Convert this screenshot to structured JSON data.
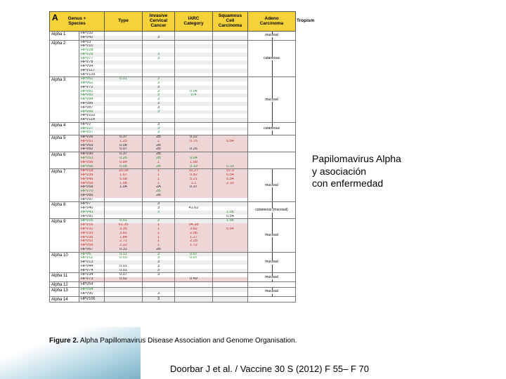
{
  "panelLabel": "A",
  "annotation": "Papilomavirus Alpha\ny asociación\ncon enfermedad",
  "citation": "Doorbar J et al. / Vaccine 30 S (2012) F 55– F 70",
  "figureCaption": [
    "Figure 2.",
    " Alpha Papillomavirus Disease Association and Genome Organisation."
  ],
  "headers": [
    "Genus + Species",
    "Type",
    "Invasive Cervical Cancer",
    "IARC Category",
    "Squamous Cell Carcinoma",
    "Adeno Carcinoma",
    "Tropism"
  ],
  "colors": {
    "black": "#222222",
    "green": "#1d8a2b",
    "red": "#c0281b",
    "band0": "#ffffff",
    "band1": "#eeeeee",
    "bandPink": "#efd6d6"
  },
  "groups": [
    {
      "genus": "Alpha 1",
      "tropism": "mucosal",
      "rows": [
        {
          "type": "HPV32",
          "c": "black"
        },
        {
          "type": "HPV42",
          "iarc": "3",
          "c": "black"
        }
      ]
    },
    {
      "genus": "Alpha 2",
      "tropism": "cutaneous",
      "rows": [
        {
          "type": "HPV3",
          "c": "black"
        },
        {
          "type": "HPV10",
          "c": "black"
        },
        {
          "type": "HPV28",
          "c": "green"
        },
        {
          "type": "HPV29",
          "iarc": "3",
          "c": "green"
        },
        {
          "type": "HPV77",
          "iarc": "3",
          "c": "green"
        },
        {
          "type": "HPV78",
          "c": "black"
        },
        {
          "type": "HPV94",
          "c": "black"
        },
        {
          "type": "HPV117",
          "c": "black"
        },
        {
          "type": "HPV125",
          "c": "black"
        }
      ]
    },
    {
      "genus": "Alpha 3",
      "tropism": "mucosal",
      "rows": [
        {
          "type": "HPV61",
          "icc": "0.01",
          "iarc": "3",
          "c": "green"
        },
        {
          "type": "HPV62",
          "iarc": "3",
          "c": "green"
        },
        {
          "type": "HPV72",
          "iarc": "3",
          "c": "black"
        },
        {
          "type": "HPV81",
          "iarc": "3",
          "scc": "0.04",
          "c": "green"
        },
        {
          "type": "HPV83",
          "iarc": "3",
          "scc": "0.4",
          "c": "green"
        },
        {
          "type": "HPV84",
          "iarc": "3",
          "c": "green"
        },
        {
          "type": "HPV86",
          "iarc": "3",
          "c": "black"
        },
        {
          "type": "HPV87",
          "iarc": "3",
          "c": "black"
        },
        {
          "type": "HPV89",
          "iarc": "3",
          "c": "green"
        },
        {
          "type": "HPV102",
          "c": "black"
        },
        {
          "type": "HPV114",
          "c": "black"
        }
      ]
    },
    {
      "genus": "Alpha 4",
      "tropism": "cutaneous",
      "rows": [
        {
          "type": "HPV2",
          "iarc": "3",
          "c": "black"
        },
        {
          "type": "HPV27",
          "iarc": "3",
          "c": "green"
        },
        {
          "type": "HPV57",
          "iarc": "3",
          "c": "green"
        }
      ]
    },
    {
      "genus": "Alpha 5",
      "rows": [
        {
          "type": "HPV26",
          "icc": "0.37",
          "iarc": "2B",
          "scc": "0.22",
          "c": "black",
          "pink": true
        },
        {
          "type": "HPV51",
          "icc": "1.25",
          "iarc": "1",
          "scc": "0.75",
          "adeno": "0.54",
          "c": "red",
          "pink": true
        },
        {
          "type": "HPV69",
          "icc": "0.08",
          "iarc": "2B",
          "c": "black",
          "pink": true
        },
        {
          "type": "HPV82",
          "icc": "0.07",
          "iarc": "2B",
          "scc": "0.26",
          "c": "black",
          "pink": true
        }
      ]
    },
    {
      "genus": "Alpha 6",
      "rows": [
        {
          "type": "HPV30",
          "icc": "0.37",
          "iarc": "2B",
          "c": "black",
          "pink": true
        },
        {
          "type": "HPV53",
          "icc": "0.26",
          "iarc": "2B",
          "scc": "0.04",
          "c": "green",
          "pink": true
        },
        {
          "type": "HPV56",
          "icc": "0.84",
          "iarc": "1",
          "scc": "1.09",
          "c": "red",
          "pink": true
        },
        {
          "type": "HPV66",
          "icc": "0.08",
          "iarc": "2B",
          "scc": "0.19",
          "adeno": "0.19",
          "c": "green",
          "pink": true
        }
      ]
    },
    {
      "genus": "Alpha 7",
      "tropism": "mucosal",
      "rows": [
        {
          "type": "HPV18",
          "icc": "10.28",
          "iarc": "1",
          "scc": "11.27",
          "adeno": "37.3",
          "c": "red",
          "pink": true
        },
        {
          "type": "HPV39",
          "icc": "1.67",
          "iarc": "1",
          "scc": "0.82",
          "adeno": "0.54",
          "c": "red",
          "pink": true
        },
        {
          "type": "HPV45",
          "icc": "5.68",
          "iarc": "1",
          "scc": "5.21",
          "adeno": "5.94",
          "c": "red",
          "pink": true
        },
        {
          "type": "HPV59",
          "icc": "1.08",
          "iarc": "1",
          "scc": "1.1",
          "adeno": "2.16",
          "c": "red",
          "pink": true
        },
        {
          "type": "HPV68",
          "icc": "1.04",
          "iarc": "2A",
          "scc": "0.37",
          "c": "black",
          "pink": true
        },
        {
          "type": "HPV70",
          "iarc": "2B",
          "c": "green",
          "pink": true
        },
        {
          "type": "HPV85",
          "iarc": "2B",
          "c": "black",
          "pink": true
        },
        {
          "type": "HPV97",
          "c": "black"
        }
      ]
    },
    {
      "genus": "Alpha 8",
      "tropism": "cutaneous (mucosal)",
      "rows": [
        {
          "type": "HPV7",
          "iarc": "3",
          "c": "black"
        },
        {
          "type": "HPV40",
          "iarc": "3",
          "scc": "41.62",
          "c": "black"
        },
        {
          "type": "HPV43",
          "iarc": "3",
          "adeno": "1.08",
          "c": "green"
        },
        {
          "type": "HPV91",
          "adeno": "0.54",
          "c": "black"
        }
      ]
    },
    {
      "genus": "Alpha 9",
      "tropism": "mucosal",
      "rows": [
        {
          "type": "HPV16",
          "icc": "0.01",
          "iarc": "3",
          "adeno": "1.06",
          "c": "green"
        },
        {
          "type": "HPV16",
          "icc": "61.35",
          "iarc": "1",
          "scc": "54.38",
          "c": "red",
          "pink": true
        },
        {
          "type": "HPV31",
          "icc": "3.35",
          "iarc": "1",
          "scc": "3.82",
          "adeno": "0.54",
          "c": "red",
          "pink": true
        },
        {
          "type": "HPV33",
          "icc": "3.81",
          "iarc": "1",
          "scc": "2.06",
          "c": "red",
          "pink": true
        },
        {
          "type": "HPV35",
          "icc": "1.84",
          "iarc": "1",
          "scc": "1.27",
          "c": "red",
          "pink": true
        },
        {
          "type": "HPV52",
          "icc": "2.71",
          "iarc": "1",
          "scc": "2.25",
          "c": "red",
          "pink": true
        },
        {
          "type": "HPV58",
          "icc": "2.22",
          "iarc": "1",
          "scc": "1.72",
          "c": "red",
          "pink": true
        },
        {
          "type": "HPV67",
          "icc": "0.31",
          "iarc": "2B",
          "c": "black",
          "pink": true
        }
      ]
    },
    {
      "genus": "Alpha 10",
      "tropism": "mucosal",
      "rows": [
        {
          "type": "HPV6",
          "icc": "0.11",
          "iarc": "3",
          "scc": "0.07",
          "c": "green"
        },
        {
          "type": "HPV11",
          "icc": "0.03",
          "iarc": "3",
          "scc": "0.07",
          "c": "green"
        },
        {
          "type": "HPV13",
          "iarc": "3",
          "c": "black"
        },
        {
          "type": "HPV44",
          "icc": "0.01",
          "iarc": "3",
          "c": "black"
        },
        {
          "type": "HPV74",
          "icc": "0.01",
          "iarc": "3",
          "c": "black"
        }
      ]
    },
    {
      "genus": "Alpha 11",
      "tropism": "mucosal",
      "rows": [
        {
          "type": "HPV34",
          "icc": "0.07",
          "iarc": "3",
          "c": "black"
        },
        {
          "type": "HPV73",
          "icc": "0.52",
          "scc": "0.49",
          "c": "black",
          "pink": true
        }
      ]
    },
    {
      "genus": "Alpha 12",
      "rows": [
        {
          "type": "HPV54",
          "c": "black"
        }
      ]
    },
    {
      "genus": "Alpha 13",
      "tropism": "mucosal",
      "rows": [
        {
          "type": "HPV54",
          "c": "green"
        },
        {
          "type": "HPV90",
          "iarc": "3",
          "c": "black"
        }
      ]
    },
    {
      "genus": "Alpha 14",
      "rows": [
        {
          "type": "HPV106",
          "iarc": "3",
          "c": "black"
        }
      ]
    }
  ]
}
